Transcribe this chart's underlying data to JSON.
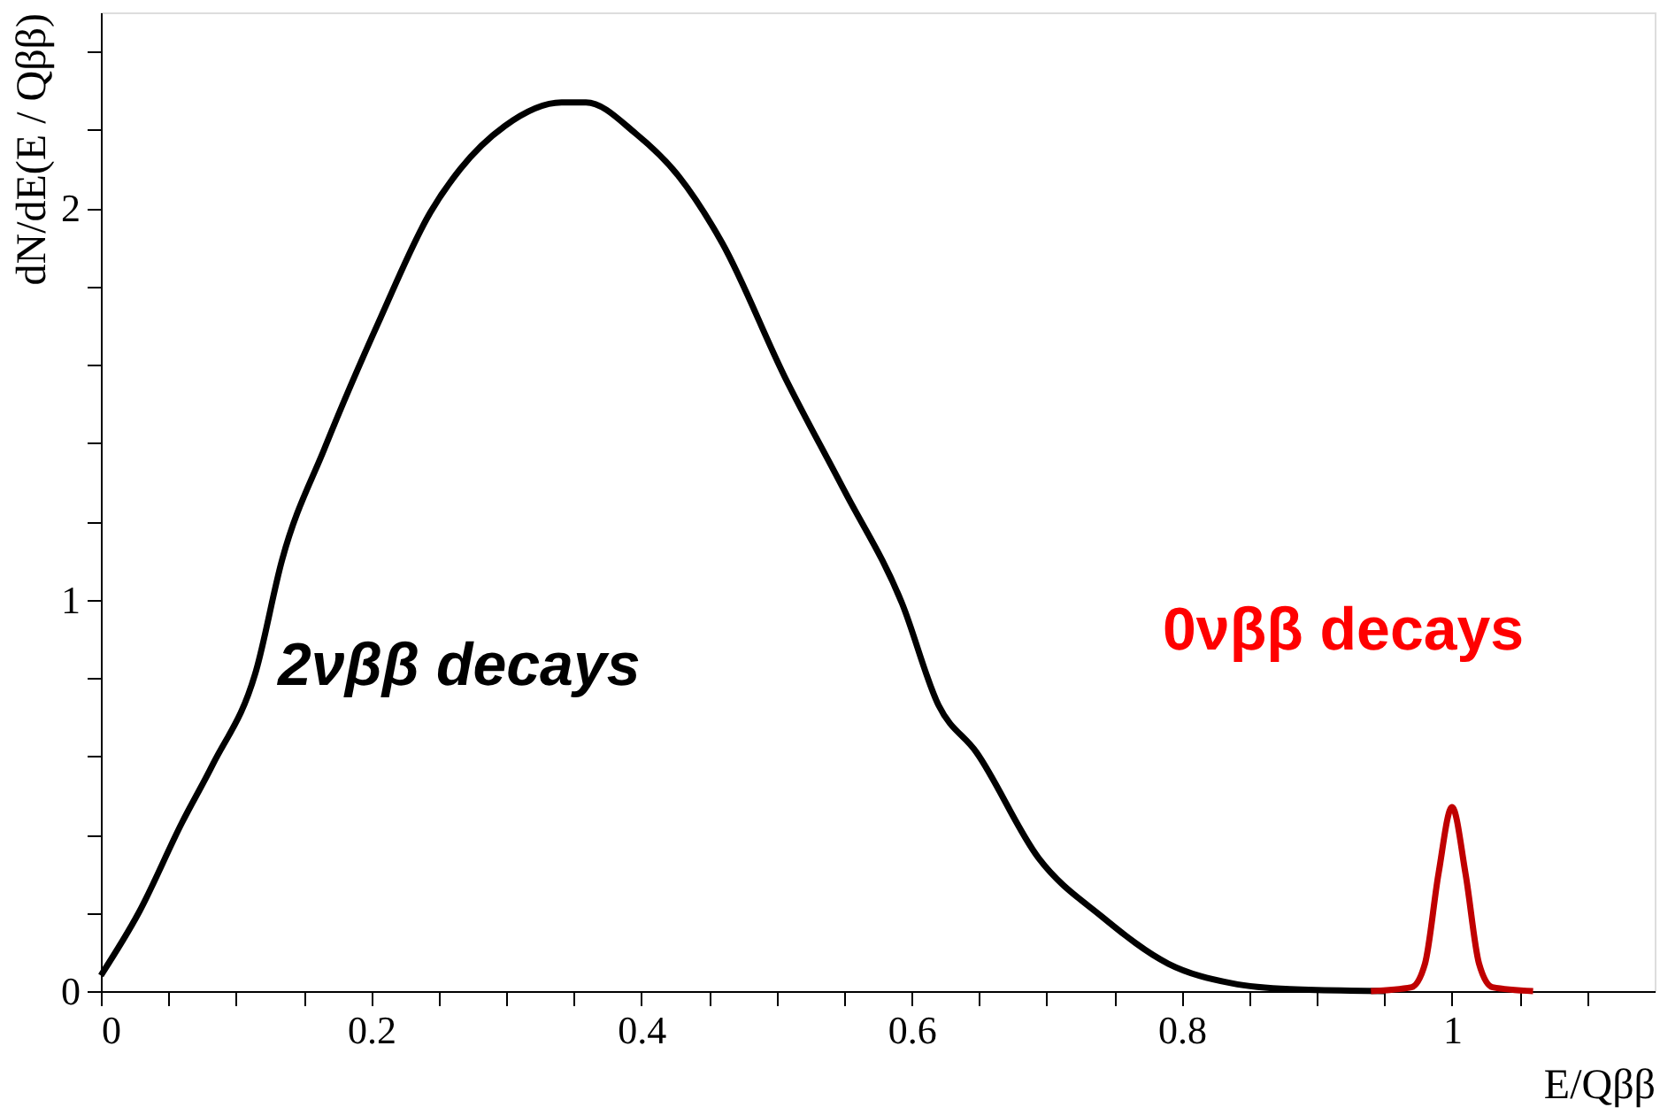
{
  "chart_data": {
    "type": "line",
    "xlabel": "E/Qββ",
    "ylabel": "dN/dE(E / Qββ)",
    "xlim": [
      0,
      1.15
    ],
    "ylim": [
      0,
      2.5
    ],
    "xticks": [
      0,
      {
        "value": 0.05,
        "label": null
      },
      {
        "value": 0.1,
        "label": null
      },
      {
        "value": 0.15,
        "label": null
      },
      0.2,
      {
        "value": 0.25,
        "label": null
      },
      {
        "value": 0.3,
        "label": null
      },
      {
        "value": 0.35,
        "label": null
      },
      0.4,
      {
        "value": 0.45,
        "label": null
      },
      {
        "value": 0.5,
        "label": null
      },
      {
        "value": 0.55,
        "label": null
      },
      0.6,
      {
        "value": 0.65,
        "label": null
      },
      {
        "value": 0.7,
        "label": null
      },
      {
        "value": 0.75,
        "label": null
      },
      0.8,
      {
        "value": 0.85,
        "label": null
      },
      {
        "value": 0.9,
        "label": null
      },
      {
        "value": 0.95,
        "label": null
      },
      1,
      {
        "value": 1.05,
        "label": null
      },
      {
        "value": 1.1,
        "label": null
      }
    ],
    "yticks": [
      0,
      {
        "value": 0.2,
        "label": null
      },
      {
        "value": 0.4,
        "label": null
      },
      {
        "value": 0.6,
        "label": null
      },
      {
        "value": 0.8,
        "label": null
      },
      1,
      {
        "value": 1.2,
        "label": null
      },
      {
        "value": 1.4,
        "label": null
      },
      {
        "value": 1.6,
        "label": null
      },
      {
        "value": 1.8,
        "label": null
      },
      2,
      {
        "value": 2.2,
        "label": null
      },
      {
        "value": 2.4,
        "label": null
      }
    ],
    "grid": false,
    "marker": "none",
    "line_style": "solid",
    "series": [
      {
        "name": "2νββ  decays",
        "color": "#000000",
        "x": [
          0,
          0.028,
          0.06,
          0.083,
          0.115,
          0.134,
          0.166,
          0.207,
          0.244,
          0.266,
          0.299,
          0.341,
          0.359,
          0.396,
          0.428,
          0.46,
          0.506,
          0.55,
          0.593,
          0.62,
          0.648,
          0.694,
          0.741,
          0.79,
          0.837,
          0.88,
          0.95
        ],
        "values": [
          0.04,
          0.2,
          0.43,
          0.58,
          0.82,
          1.1,
          1.39,
          1.72,
          1.99,
          2.1,
          2.21,
          2.27,
          2.27,
          2.19,
          2.08,
          1.91,
          1.57,
          1.28,
          0.99,
          0.73,
          0.61,
          0.34,
          0.19,
          0.07,
          0.02,
          0.005,
          0
        ]
      },
      {
        "name": "0νββ decays",
        "color": "#c00000",
        "x": [
          0.94,
          0.97,
          0.98,
          0.99,
          1.0,
          1.01,
          1.02,
          1.03,
          1.06
        ],
        "values": [
          0,
          0.01,
          0.07,
          0.3,
          0.47,
          0.3,
          0.07,
          0.01,
          0
        ]
      }
    ]
  }
}
